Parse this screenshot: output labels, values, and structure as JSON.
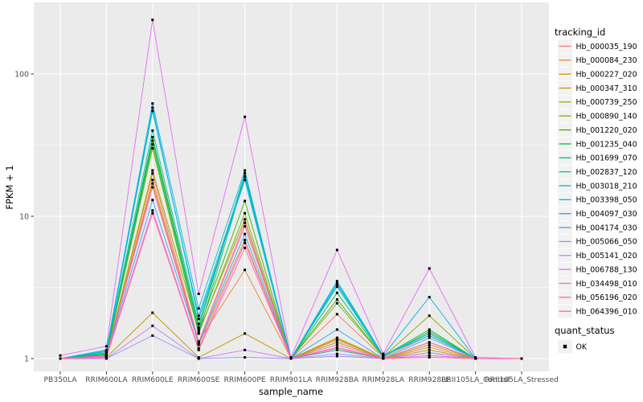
{
  "figure": {
    "background": "#FFFFFF",
    "panel_background": "#EBEBEB",
    "grid_color": "#FFFFFF",
    "axis_text_color": "#4D4D4D",
    "tick_mark_color": "#333333",
    "text_color": "#000000",
    "legend_key_background": "#F2F2F2"
  },
  "chart_data": {
    "type": "line",
    "title": "",
    "xlabel": "sample_name",
    "ylabel": "FPKM + 1",
    "y_scale": "log10",
    "y_ticks": [
      1,
      10,
      100
    ],
    "y_minor_gridlines": [
      3.1623,
      31.623
    ],
    "ylim": [
      0.82,
      315
    ],
    "grid": true,
    "categories": [
      "PB350LA",
      "RRIM600LA",
      "RRIM600LE",
      "RRIM600SE",
      "RRIM600PE",
      "RRIM901LA",
      "RRIM928BA",
      "RRIM928LA",
      "RRIM928LE",
      "RRII105LA_Control",
      "RRII105LA_Stressed"
    ],
    "series": [
      {
        "name": "Hb_000035_190",
        "color": "#F8766D",
        "values": [
          1.0,
          1.04,
          18.0,
          1.3,
          8.5,
          1.0,
          2.05,
          1.02,
          1.45,
          1.0,
          1.0
        ]
      },
      {
        "name": "Hb_000084_230",
        "color": "#EA8331",
        "values": [
          1.0,
          1.05,
          20.0,
          1.32,
          4.2,
          1.0,
          1.35,
          1.0,
          1.2,
          1.0,
          1.0
        ]
      },
      {
        "name": "Hb_000227_020",
        "color": "#D89000",
        "values": [
          1.0,
          1.04,
          17.0,
          1.25,
          6.8,
          1.0,
          1.4,
          1.0,
          1.25,
          1.0,
          1.0
        ]
      },
      {
        "name": "Hb_000347_310",
        "color": "#C09B00",
        "values": [
          1.0,
          1.02,
          2.1,
          1.02,
          1.5,
          1.0,
          1.38,
          1.0,
          1.15,
          1.0,
          1.0
        ]
      },
      {
        "name": "Hb_000739_250",
        "color": "#A3A500",
        "values": [
          1.0,
          1.05,
          21.0,
          1.55,
          9.5,
          1.0,
          1.3,
          1.0,
          1.3,
          1.0,
          1.0
        ]
      },
      {
        "name": "Hb_000890_140",
        "color": "#7CAE00",
        "values": [
          1.0,
          1.06,
          30.0,
          1.5,
          10.5,
          1.0,
          2.45,
          1.03,
          2.0,
          1.0,
          1.0
        ]
      },
      {
        "name": "Hb_001220_020",
        "color": "#39B600",
        "values": [
          1.0,
          1.07,
          34.0,
          1.6,
          12.8,
          1.0,
          2.6,
          1.03,
          1.55,
          1.0,
          1.0
        ]
      },
      {
        "name": "Hb_001235_040",
        "color": "#00BB4E",
        "values": [
          1.0,
          1.08,
          36.0,
          1.65,
          20.0,
          1.0,
          2.9,
          1.04,
          1.6,
          1.0,
          1.0
        ]
      },
      {
        "name": "Hb_001699_070",
        "color": "#00BF7D",
        "values": [
          1.0,
          1.1,
          32.0,
          1.5,
          19.0,
          1.0,
          1.15,
          1.0,
          1.1,
          1.0,
          1.0
        ]
      },
      {
        "name": "Hb_002837_120",
        "color": "#00C1A3",
        "values": [
          1.0,
          1.12,
          40.0,
          1.75,
          20.0,
          1.0,
          3.2,
          1.04,
          1.5,
          1.0,
          1.0
        ]
      },
      {
        "name": "Hb_003018_210",
        "color": "#00BFC4",
        "values": [
          1.0,
          1.14,
          55.0,
          2.0,
          19.0,
          1.0,
          3.3,
          1.05,
          1.45,
          1.0,
          1.0
        ]
      },
      {
        "name": "Hb_003398_050",
        "color": "#00BAE0",
        "values": [
          1.0,
          1.15,
          62.0,
          2.25,
          21.0,
          1.0,
          3.5,
          1.05,
          1.5,
          1.0,
          1.0
        ]
      },
      {
        "name": "Hb_004097_030",
        "color": "#00B0F6",
        "values": [
          1.0,
          1.12,
          58.0,
          1.9,
          18.0,
          1.0,
          3.4,
          1.05,
          2.7,
          1.0,
          1.0
        ]
      },
      {
        "name": "Hb_004174_030",
        "color": "#35A2FF",
        "values": [
          1.0,
          1.05,
          13.0,
          1.28,
          7.5,
          1.0,
          1.6,
          1.0,
          1.4,
          1.0,
          1.0
        ]
      },
      {
        "name": "Hb_005066_050",
        "color": "#9590FF",
        "values": [
          1.0,
          1.0,
          1.45,
          1.0,
          1.02,
          1.0,
          1.04,
          1.0,
          1.05,
          1.0,
          1.0
        ]
      },
      {
        "name": "Hb_005141_020",
        "color": "#C77CFF",
        "values": [
          1.0,
          1.0,
          1.7,
          1.0,
          1.15,
          1.0,
          1.08,
          1.0,
          1.1,
          1.0,
          1.0
        ]
      },
      {
        "name": "Hb_006788_130",
        "color": "#E76BF3",
        "values": [
          1.05,
          1.22,
          240.0,
          2.85,
          50.0,
          1.02,
          5.8,
          1.08,
          4.3,
          1.02,
          1.0
        ]
      },
      {
        "name": "Hb_034498_010",
        "color": "#FA62DB",
        "values": [
          1.0,
          1.04,
          11.0,
          1.18,
          6.5,
          1.0,
          1.25,
          1.0,
          1.05,
          1.0,
          1.0
        ]
      },
      {
        "name": "Hb_056196_020",
        "color": "#FF62BC",
        "values": [
          1.0,
          1.05,
          16.0,
          1.3,
          9.0,
          1.0,
          1.2,
          1.0,
          1.3,
          1.0,
          1.0
        ]
      },
      {
        "name": "Hb_064396_010",
        "color": "#FF6A98",
        "values": [
          1.0,
          1.02,
          10.5,
          1.15,
          6.0,
          1.0,
          1.18,
          1.0,
          1.02,
          1.0,
          1.0
        ]
      }
    ],
    "points": {
      "shape": "square",
      "color": "#000000",
      "size": 3
    },
    "legend": {
      "position": "right",
      "color_title": "tracking_id",
      "shape_title": "quant_status",
      "shape_items": [
        {
          "label": "OK",
          "shape": "square",
          "color": "#000000"
        }
      ]
    }
  }
}
